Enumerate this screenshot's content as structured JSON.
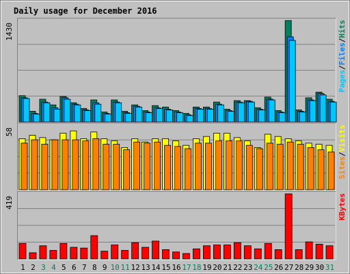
{
  "colors": {
    "background": "#C0C0C0",
    "panel": "#C0C0C0",
    "frame_dark": "#808080",
    "frame_light": "#FFFFFF",
    "title": "#0000FF",
    "hits": "#00805C",
    "files": "#0080FF",
    "pages": "#00C8FF",
    "visits": "#FFFF00",
    "sites": "#FF8000",
    "kbytes": "#FF0000",
    "weekend_day": "#00805C",
    "weekday": "#000000"
  },
  "chart_data": [
    {
      "type": "bar",
      "title": "Daily usage for December 2016",
      "panel": "hits-files-pages",
      "ymax_label": "1430",
      "ylim": [
        0,
        1430
      ],
      "legend": [
        "Pages",
        "/",
        "Files",
        "/",
        "Hits"
      ],
      "categories": [
        "1",
        "2",
        "3",
        "4",
        "5",
        "6",
        "7",
        "8",
        "9",
        "10",
        "11",
        "12",
        "13",
        "14",
        "15",
        "16",
        "17",
        "18",
        "19",
        "20",
        "21",
        "22",
        "23",
        "24",
        "25",
        "26",
        "27",
        "28",
        "29",
        "30",
        "31"
      ],
      "series": [
        {
          "name": "Hits",
          "values": [
            370,
            150,
            320,
            240,
            360,
            270,
            190,
            310,
            140,
            310,
            150,
            240,
            160,
            230,
            210,
            160,
            120,
            210,
            210,
            280,
            180,
            300,
            300,
            200,
            350,
            160,
            1430,
            170,
            340,
            420,
            320
          ]
        },
        {
          "name": "Files",
          "values": [
            340,
            120,
            280,
            200,
            340,
            250,
            170,
            270,
            120,
            280,
            130,
            220,
            140,
            200,
            180,
            140,
            100,
            190,
            190,
            250,
            160,
            280,
            290,
            180,
            320,
            140,
            1200,
            150,
            310,
            400,
            290
          ]
        },
        {
          "name": "Pages",
          "values": [
            330,
            110,
            270,
            180,
            320,
            240,
            160,
            250,
            110,
            270,
            120,
            210,
            130,
            190,
            170,
            130,
            90,
            180,
            180,
            240,
            150,
            270,
            280,
            170,
            310,
            130,
            1150,
            140,
            300,
            380,
            280
          ]
        }
      ]
    },
    {
      "type": "bar",
      "panel": "visits-sites",
      "ymax_label": "58",
      "ylim": [
        0,
        58
      ],
      "legend": [
        "Sites",
        "/",
        "Visits"
      ],
      "categories": [
        "1",
        "2",
        "3",
        "4",
        "5",
        "6",
        "7",
        "8",
        "9",
        "10",
        "11",
        "12",
        "13",
        "14",
        "15",
        "16",
        "17",
        "18",
        "19",
        "20",
        "21",
        "22",
        "23",
        "24",
        "25",
        "26",
        "27",
        "28",
        "29",
        "30",
        "31"
      ],
      "series": [
        {
          "name": "Visits",
          "values": [
            46,
            49,
            47,
            45,
            51,
            53,
            46,
            52,
            46,
            44,
            38,
            46,
            43,
            46,
            46,
            44,
            40,
            46,
            48,
            51,
            51,
            47,
            44,
            38,
            50,
            48,
            46,
            44,
            42,
            41,
            40
          ]
        },
        {
          "name": "Sites",
          "values": [
            42,
            45,
            41,
            45,
            45,
            45,
            44,
            46,
            41,
            41,
            36,
            43,
            42,
            43,
            40,
            39,
            37,
            42,
            42,
            44,
            44,
            44,
            40,
            37,
            42,
            41,
            43,
            41,
            38,
            36,
            34
          ]
        }
      ]
    },
    {
      "type": "bar",
      "panel": "kbytes",
      "ymax_label": "419",
      "ylim": [
        0,
        419
      ],
      "legend": [
        "KBytes"
      ],
      "categories": [
        "1",
        "2",
        "3",
        "4",
        "5",
        "6",
        "7",
        "8",
        "9",
        "10",
        "11",
        "12",
        "13",
        "14",
        "15",
        "16",
        "17",
        "18",
        "19",
        "20",
        "21",
        "22",
        "23",
        "24",
        "25",
        "26",
        "27",
        "28",
        "29",
        "30",
        "31"
      ],
      "series": [
        {
          "name": "KBytes",
          "values": [
            100,
            40,
            85,
            55,
            100,
            75,
            70,
            150,
            50,
            90,
            55,
            105,
            75,
            115,
            60,
            45,
            35,
            65,
            85,
            90,
            90,
            105,
            85,
            65,
            100,
            60,
            419,
            60,
            110,
            95,
            85
          ]
        }
      ]
    }
  ],
  "x_axis": {
    "weekend_days": [
      3,
      4,
      10,
      11,
      17,
      18,
      24,
      25,
      31
    ]
  }
}
